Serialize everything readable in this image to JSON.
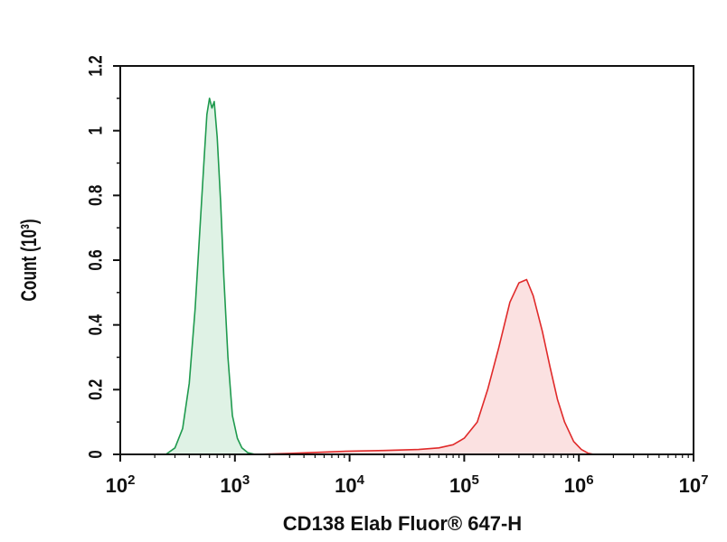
{
  "chart_data": {
    "type": "area",
    "xlabel": "CD138 Elab Fluor® 647-H",
    "ylabel": "Count (10³)",
    "x_scale": "log",
    "xlim": [
      100,
      10000000
    ],
    "ylim": [
      0,
      1.2
    ],
    "x_ticks": [
      {
        "value": 100,
        "base": "10",
        "exp": "2"
      },
      {
        "value": 1000,
        "base": "10",
        "exp": "3"
      },
      {
        "value": 10000,
        "base": "10",
        "exp": "4"
      },
      {
        "value": 100000,
        "base": "10",
        "exp": "5"
      },
      {
        "value": 1000000,
        "base": "10",
        "exp": "6"
      },
      {
        "value": 10000000,
        "base": "10",
        "exp": "7"
      }
    ],
    "y_ticks": [
      {
        "value": 0,
        "label": "0"
      },
      {
        "value": 0.2,
        "label": "0.2"
      },
      {
        "value": 0.4,
        "label": "0.4"
      },
      {
        "value": 0.6,
        "label": "0.6"
      },
      {
        "value": 0.8,
        "label": "0.8"
      },
      {
        "value": 1.0,
        "label": "1"
      },
      {
        "value": 1.2,
        "label": "1.2"
      }
    ],
    "grid": false,
    "legend": "none",
    "series": [
      {
        "color": "#1f9a4e",
        "fill": "#dff2e5",
        "x": [
          250,
          300,
          350,
          400,
          450,
          500,
          540,
          570,
          600,
          630,
          660,
          700,
          750,
          800,
          870,
          950,
          1050,
          1150,
          1300,
          1500
        ],
        "y": [
          0.0,
          0.02,
          0.08,
          0.22,
          0.45,
          0.72,
          0.92,
          1.05,
          1.1,
          1.07,
          1.09,
          0.98,
          0.78,
          0.55,
          0.3,
          0.12,
          0.05,
          0.02,
          0.005,
          0.0
        ]
      },
      {
        "color": "#e02a2a",
        "fill": "#fbe1e1",
        "x": [
          1500,
          3000,
          10000,
          20000,
          40000,
          60000,
          80000,
          100000,
          130000,
          160000,
          200000,
          250000,
          300000,
          350000,
          400000,
          480000,
          560000,
          650000,
          750000,
          900000,
          1050000,
          1200000,
          1350000
        ],
        "y": [
          0.0,
          0.003,
          0.01,
          0.012,
          0.015,
          0.02,
          0.03,
          0.05,
          0.1,
          0.2,
          0.33,
          0.47,
          0.53,
          0.54,
          0.49,
          0.38,
          0.27,
          0.17,
          0.1,
          0.04,
          0.015,
          0.004,
          0.0
        ]
      }
    ]
  }
}
